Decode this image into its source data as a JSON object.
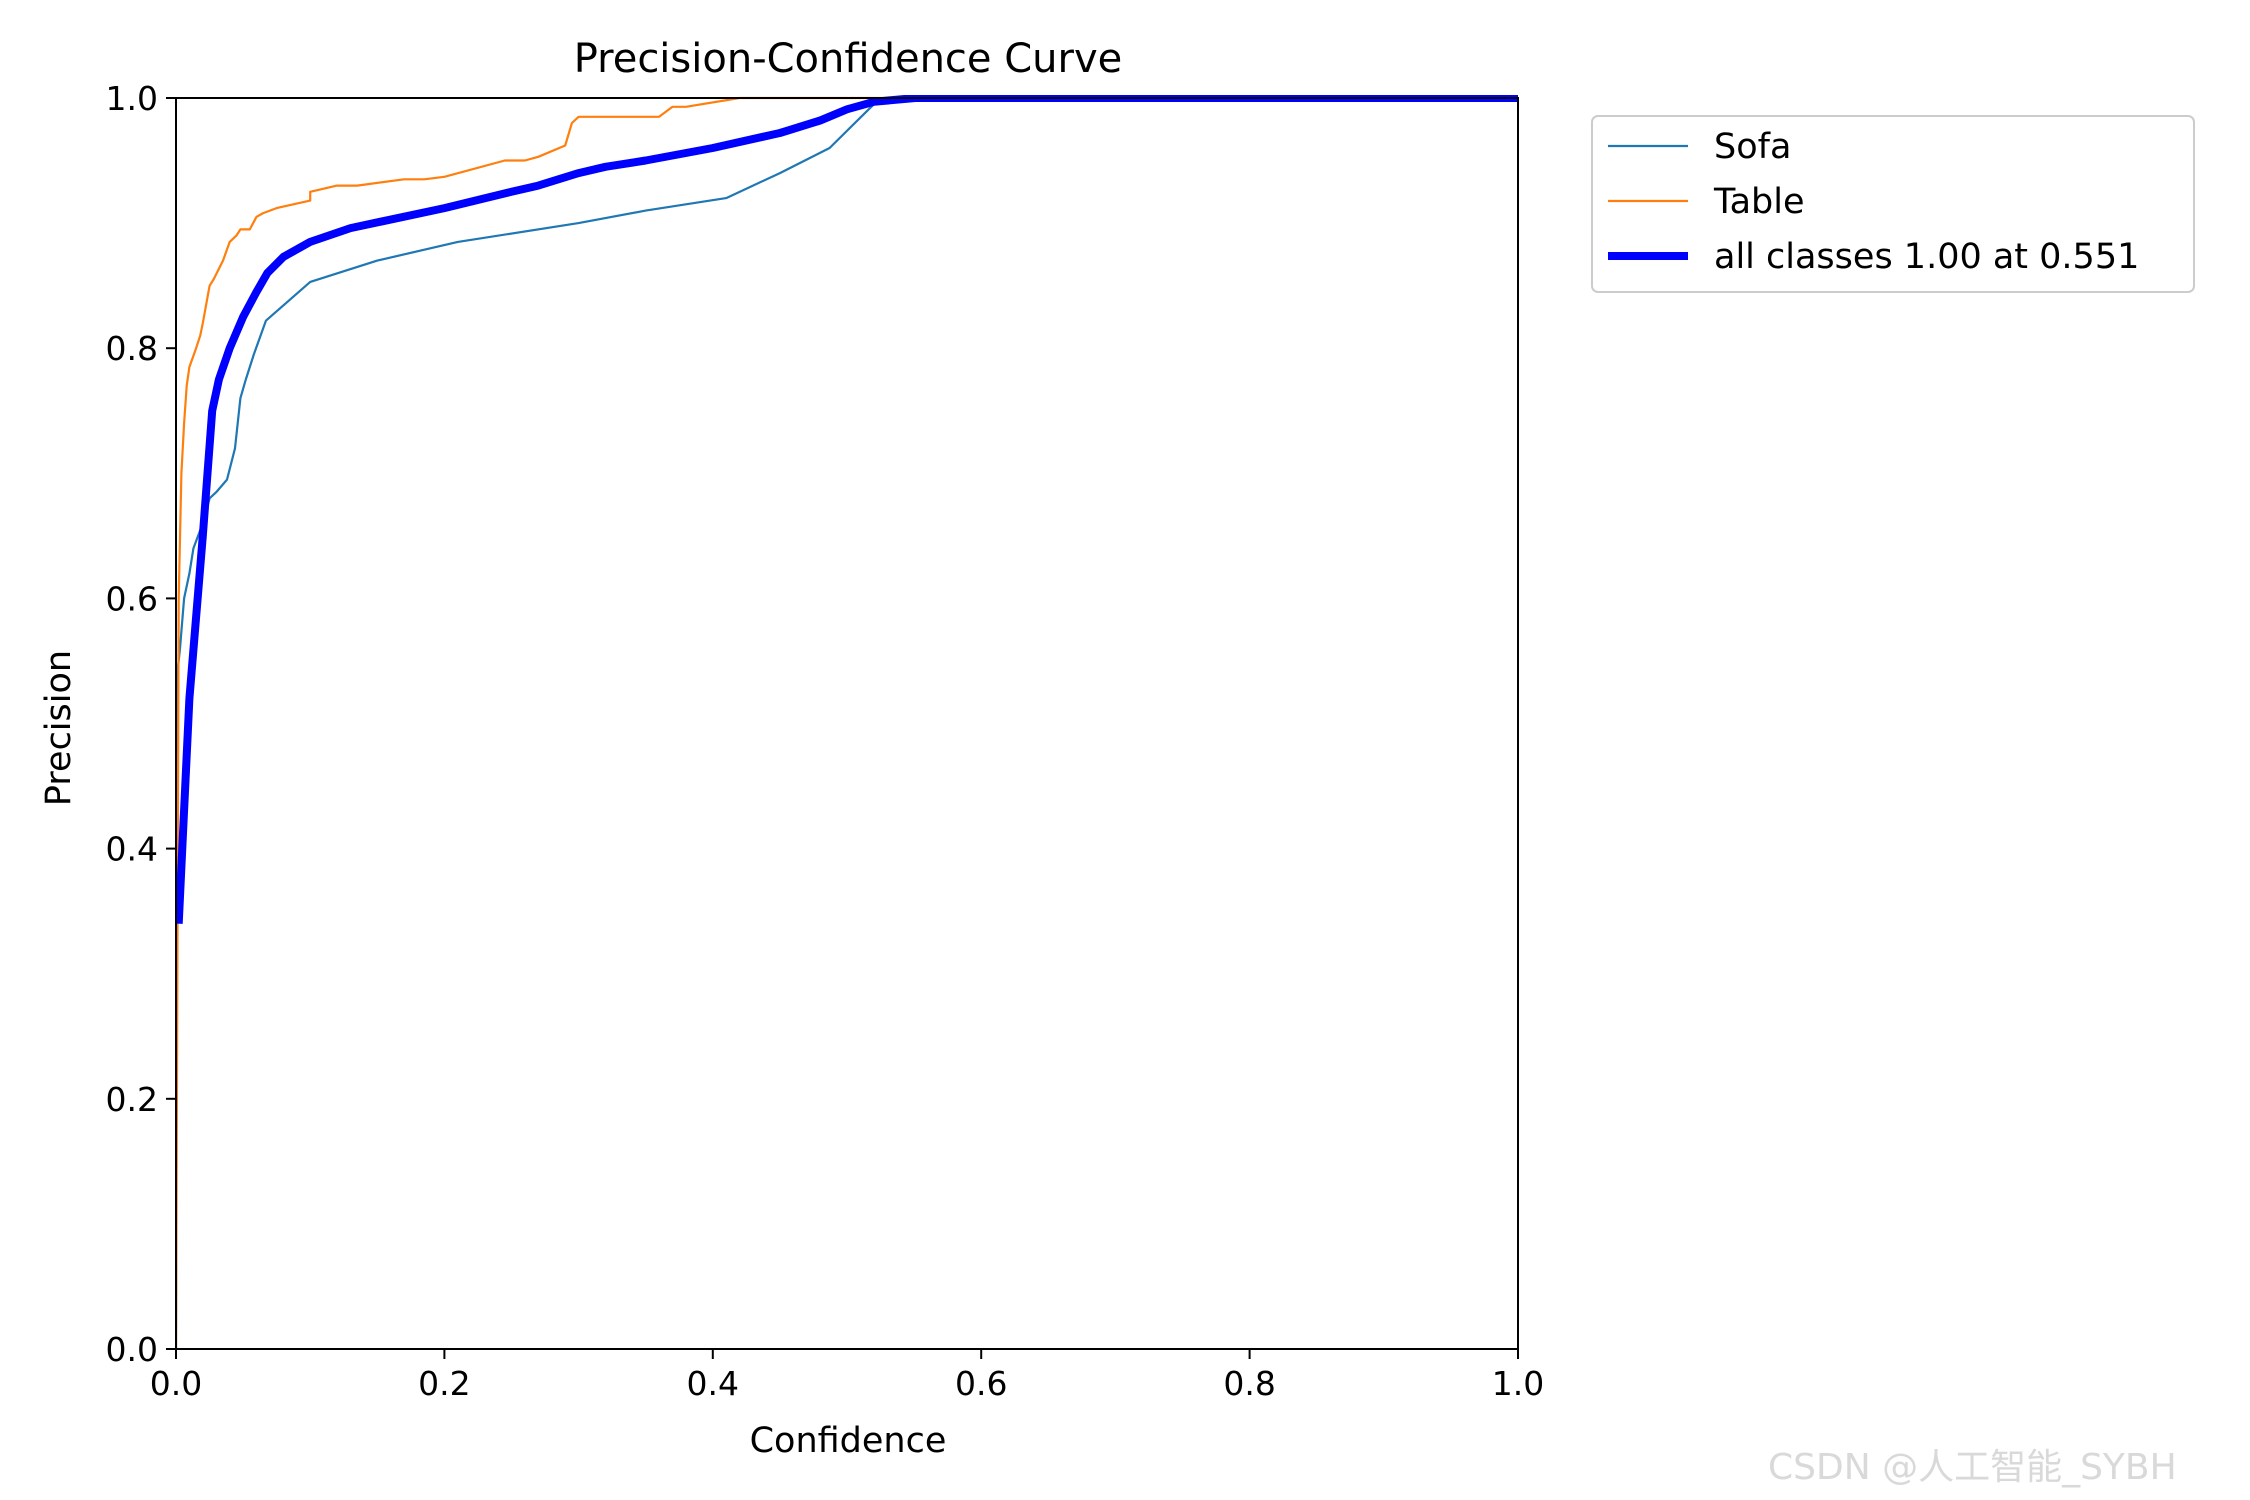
{
  "chart_data": {
    "type": "line",
    "title": "Precision-Confidence Curve",
    "xlabel": "Confidence",
    "ylabel": "Precision",
    "xlim": [
      0,
      1
    ],
    "ylim": [
      0,
      1
    ],
    "xticks": [
      "0.0",
      "0.2",
      "0.4",
      "0.6",
      "0.8",
      "1.0"
    ],
    "yticks": [
      "0.0",
      "0.2",
      "0.4",
      "0.6",
      "0.8",
      "1.0"
    ],
    "grid": false,
    "legend_position": "outside-top-right",
    "series": [
      {
        "name": "Sofa",
        "color": "#1f77b4",
        "x": [
          0.0,
          0.001,
          0.003,
          0.006,
          0.01,
          0.013,
          0.02,
          0.025,
          0.03,
          0.038,
          0.044,
          0.048,
          0.052,
          0.058,
          0.067,
          0.1,
          0.15,
          0.21,
          0.3,
          0.35,
          0.41,
          0.45,
          0.487,
          0.52,
          0.55,
          0.6,
          0.7,
          0.8,
          0.9,
          1.0
        ],
        "y": [
          0.0,
          0.54,
          0.56,
          0.6,
          0.62,
          0.64,
          0.66,
          0.68,
          0.685,
          0.695,
          0.72,
          0.76,
          0.775,
          0.795,
          0.822,
          0.853,
          0.87,
          0.885,
          0.9,
          0.91,
          0.92,
          0.94,
          0.96,
          0.995,
          1.0,
          1.0,
          1.0,
          1.0,
          1.0,
          1.0
        ]
      },
      {
        "name": "Table",
        "color": "#ff7f0e",
        "x": [
          0.0,
          0.002,
          0.004,
          0.006,
          0.008,
          0.01,
          0.015,
          0.018,
          0.02,
          0.025,
          0.028,
          0.035,
          0.04,
          0.045,
          0.048,
          0.055,
          0.06,
          0.065,
          0.075,
          0.1,
          0.1,
          0.12,
          0.135,
          0.17,
          0.185,
          0.2,
          0.245,
          0.26,
          0.27,
          0.29,
          0.295,
          0.3,
          0.36,
          0.37,
          0.38,
          0.42,
          0.45,
          0.6,
          0.8,
          1.0
        ],
        "y": [
          0.0,
          0.6,
          0.7,
          0.74,
          0.77,
          0.785,
          0.8,
          0.81,
          0.82,
          0.85,
          0.855,
          0.87,
          0.885,
          0.89,
          0.895,
          0.895,
          0.905,
          0.908,
          0.912,
          0.918,
          0.925,
          0.93,
          0.93,
          0.935,
          0.935,
          0.937,
          0.95,
          0.95,
          0.953,
          0.962,
          0.98,
          0.985,
          0.985,
          0.993,
          0.993,
          1.0,
          1.0,
          1.0,
          1.0,
          1.0
        ]
      },
      {
        "name": "all classes 1.00 at 0.551",
        "color": "#0000ff",
        "x": [
          0.002,
          0.01,
          0.02,
          0.027,
          0.032,
          0.04,
          0.05,
          0.06,
          0.068,
          0.08,
          0.1,
          0.13,
          0.2,
          0.25,
          0.27,
          0.3,
          0.32,
          0.35,
          0.4,
          0.45,
          0.48,
          0.5,
          0.52,
          0.551,
          0.6,
          0.7,
          0.8,
          0.9,
          1.0
        ],
        "y": [
          0.34,
          0.52,
          0.65,
          0.75,
          0.775,
          0.8,
          0.825,
          0.845,
          0.86,
          0.873,
          0.885,
          0.896,
          0.912,
          0.925,
          0.93,
          0.94,
          0.945,
          0.95,
          0.96,
          0.972,
          0.982,
          0.991,
          0.997,
          1.0,
          1.0,
          1.0,
          1.0,
          1.0,
          1.0
        ]
      }
    ]
  },
  "watermark": "CSDN @人工智能_SYBH"
}
